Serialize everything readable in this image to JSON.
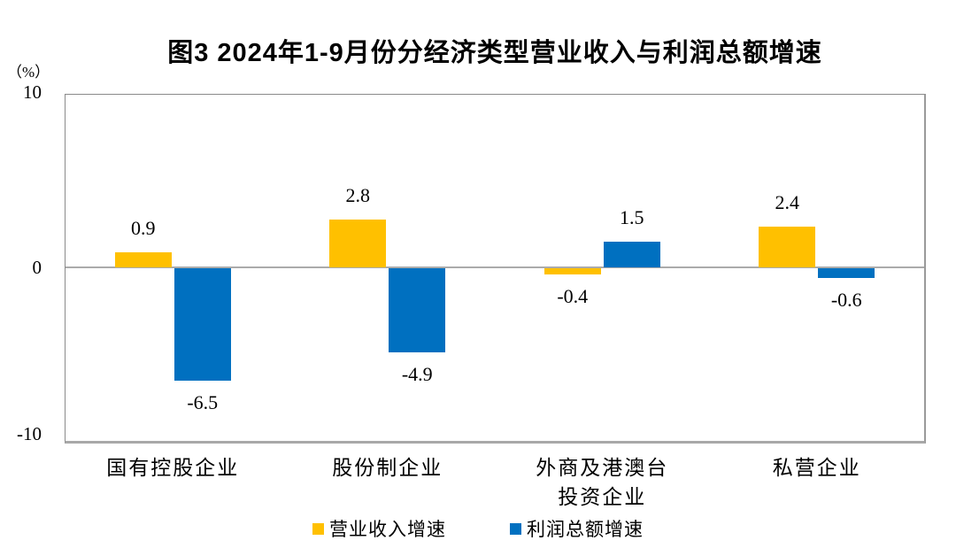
{
  "chart": {
    "title": "图3 2024年1-9月份分经济类型营业收入与利润总额增速",
    "unit_label": "（%）",
    "y_tick_labels": [
      "10",
      "0",
      "-10"
    ]
  },
  "chart_data": {
    "type": "bar",
    "title": "图3 2024年1-9月份分经济类型营业收入与利润总额增速",
    "categories": [
      "国有控股企业",
      "股份制企业",
      "外商及港澳台\n投资企业",
      "私营企业"
    ],
    "series": [
      {
        "name": "营业收入增速",
        "color": "#FFC000",
        "values": [
          0.9,
          2.8,
          -0.4,
          2.4
        ]
      },
      {
        "name": "利润总额增速",
        "color": "#0070C0",
        "values": [
          -6.5,
          -4.9,
          1.5,
          -0.6
        ]
      }
    ],
    "ylabel": "（%）",
    "ylim": [
      -10,
      10
    ],
    "y_ticks": [
      10,
      0,
      -10
    ],
    "grid": false,
    "zero_line": true,
    "value_labels": true,
    "legend_position": "bottom",
    "colors": {
      "revenue": "#FFC000",
      "profit": "#0070C0",
      "axis": "#8a8a8a",
      "zero_line": "#ababab"
    }
  }
}
